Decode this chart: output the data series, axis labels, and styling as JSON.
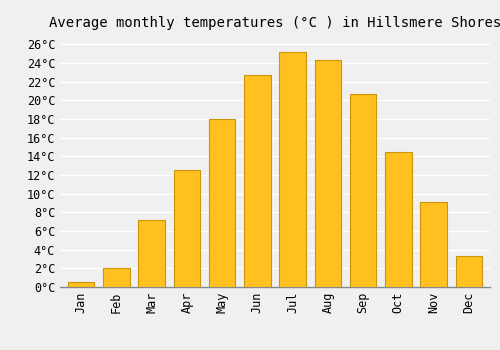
{
  "title": "Average monthly temperatures (°C ) in Hillsmere Shores",
  "months": [
    "Jan",
    "Feb",
    "Mar",
    "Apr",
    "May",
    "Jun",
    "Jul",
    "Aug",
    "Sep",
    "Oct",
    "Nov",
    "Dec"
  ],
  "values": [
    0.5,
    2.0,
    7.2,
    12.5,
    18.0,
    22.7,
    25.2,
    24.3,
    20.7,
    14.5,
    9.1,
    3.3
  ],
  "bar_color": "#FFC020",
  "bar_edge_color": "#C8960A",
  "ylim": [
    0,
    27
  ],
  "yticks": [
    0,
    2,
    4,
    6,
    8,
    10,
    12,
    14,
    16,
    18,
    20,
    22,
    24,
    26
  ],
  "background_color": "#f0f0f0",
  "grid_color": "#ffffff",
  "title_fontsize": 10,
  "tick_fontsize": 8.5,
  "font_family": "monospace",
  "bar_width": 0.75
}
